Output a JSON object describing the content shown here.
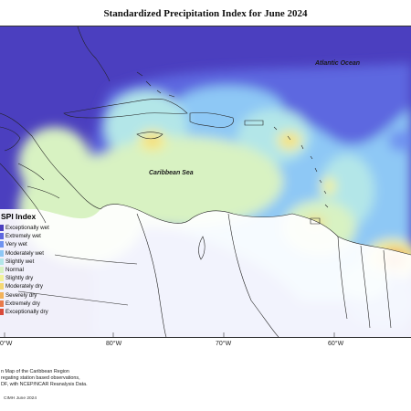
{
  "title": "Standardized Precipitation Index for June 2024",
  "labels": {
    "atlantic": "Atlantic Ocean",
    "caribbean": "Caribbean Sea"
  },
  "ticks": [
    "0°W",
    "80°W",
    "70°W",
    "60°W"
  ],
  "legend": {
    "title": "SPI Index",
    "items": [
      {
        "label": "Exceptionally wet",
        "color": "#4b3fbf"
      },
      {
        "label": "Extremely wet",
        "color": "#5d67e0"
      },
      {
        "label": "Very wet",
        "color": "#6f93f0"
      },
      {
        "label": "Moderately wet",
        "color": "#8ec8f5"
      },
      {
        "label": "Slightly wet",
        "color": "#b3e6e8"
      },
      {
        "label": "Normal",
        "color": "#d8f2c2"
      },
      {
        "label": "Slightly dry",
        "color": "#f2f29a"
      },
      {
        "label": "Moderately dry",
        "color": "#f5d873"
      },
      {
        "label": "Severely dry",
        "color": "#f2b25a"
      },
      {
        "label": "Extremely dry",
        "color": "#e87a4a"
      },
      {
        "label": "Exceptionally dry",
        "color": "#d94a3a"
      }
    ]
  },
  "notes": [
    "n Map of the Caribbean Region",
    "regating station based observations,",
    "DF, with NCEP/NCAR Reanalysis Data."
  ],
  "credit": "CIMH June 2024"
}
